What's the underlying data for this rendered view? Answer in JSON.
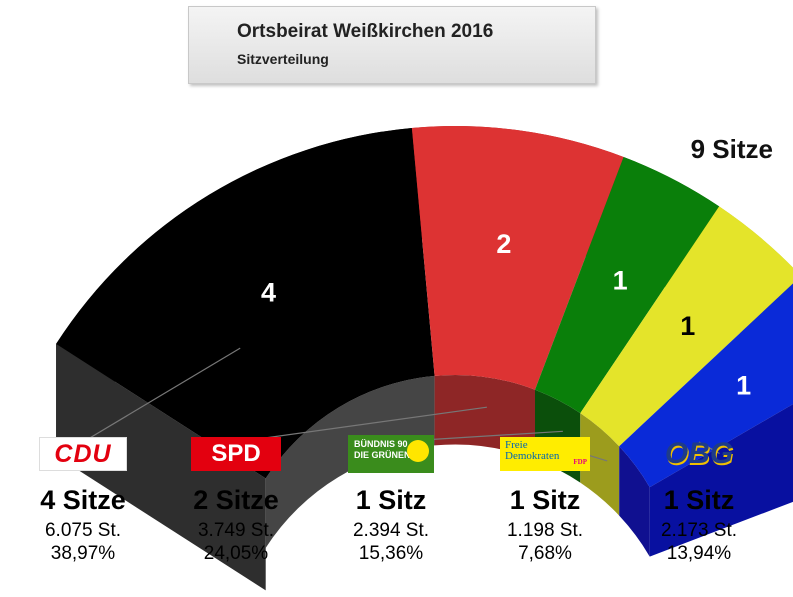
{
  "title": "Ortsbeirat Weißkirchen 2016",
  "subtitle": "Sitzverteilung",
  "total_seats_label": "9 Sitze",
  "chart_data": {
    "type": "pie",
    "variant": "semicircle-3d-parliament",
    "title": "Ortsbeirat Weißkirchen 2016",
    "subtitle": "Sitzverteilung",
    "total_seats": 9,
    "series": [
      {
        "name": "CDU",
        "seats": 4,
        "seat_label": "4",
        "seats_text": "4 Sitze",
        "votes": "6.075 St.",
        "percent": "38,97%",
        "color": "#000000",
        "side": "#2e2e2e",
        "inner": "#454545"
      },
      {
        "name": "SPD",
        "seats": 2,
        "seat_label": "2",
        "seats_text": "2 Sitze",
        "votes": "3.749 St.",
        "percent": "24,05%",
        "color": "#dd3333",
        "side": "#a82626",
        "inner": "#8e2626"
      },
      {
        "name": "Bündnis 90 / Die Grünen",
        "seats": 1,
        "seat_label": "1",
        "seats_text": "1 Sitz",
        "votes": "2.394 St.",
        "percent": "15,36%",
        "color": "#0a7f0a",
        "side": "#055a05",
        "inner": "#0b4f0b"
      },
      {
        "name": "FDP",
        "seats": 1,
        "seat_label": "1",
        "seats_text": "1 Sitz",
        "votes": "1.198 St.",
        "percent": "7,68%",
        "color": "#e4e42a",
        "side": "#b4b41a",
        "inner": "#9c9c1d"
      },
      {
        "name": "OBG",
        "seats": 1,
        "seat_label": "1",
        "seats_text": "1 Sitz",
        "votes": "2.173 St.",
        "percent": "13,94%",
        "color": "#0a2ad8",
        "side": "#0810a0",
        "inner": "#101090"
      }
    ]
  },
  "logos": {
    "cdu": "CDU",
    "spd": "SPD",
    "gruene_line1": "BÜNDNIS 90",
    "gruene_line2": "DIE GRÜNEN",
    "fdp_line1": "Freie",
    "fdp_line2": "Demokraten",
    "fdp_tag": "FDP",
    "obg": "OBG"
  }
}
